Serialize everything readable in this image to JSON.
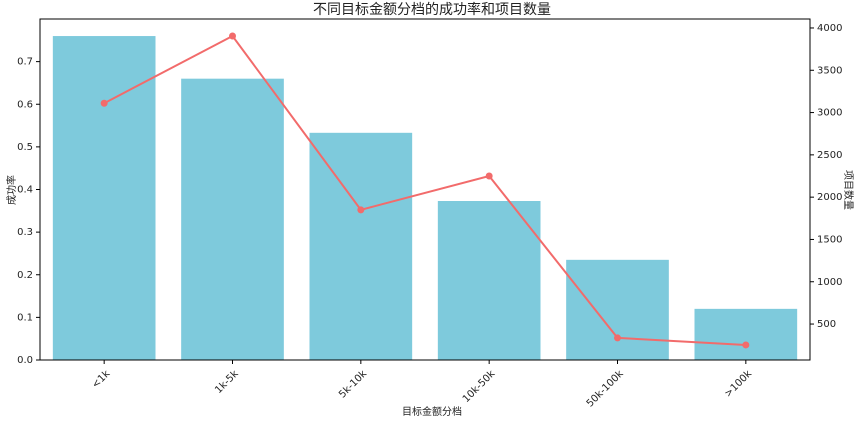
{
  "chart_data": {
    "type": "bar",
    "title": "不同目标金额分档的成功率和项目数量",
    "x_label": "目标金额分档",
    "y_label": "成功率",
    "y2_label": "项目数量",
    "categories": [
      "<1k",
      "1k-5k",
      "5k-10k",
      "10k-50k",
      "50k-100k",
      ">100k"
    ],
    "series": [
      {
        "type": "bar",
        "color": "#7ecadc",
        "values": [
          0.76,
          0.66,
          0.533,
          0.373,
          0.235,
          0.12
        ]
      },
      {
        "type": "line",
        "axis": "y2",
        "color": "#f26b6b",
        "values": [
          3110,
          3905,
          1850,
          2250,
          336,
          253
        ]
      }
    ],
    "ylim": [
      0,
      0.8
    ],
    "yticks": [
      {
        "value": 0,
        "label": "0.0"
      },
      {
        "value": 0.1,
        "label": "0.1"
      },
      {
        "value": 0.2,
        "label": "0.2"
      },
      {
        "value": 0.3,
        "label": "0.3"
      },
      {
        "value": 0.4,
        "label": "0.4"
      },
      {
        "value": 0.5,
        "label": "0.5"
      },
      {
        "value": 0.6,
        "label": "0.6"
      },
      {
        "value": 0.7,
        "label": "0.7"
      }
    ],
    "y2lim": [
      75,
      4106
    ],
    "y2ticks": [
      500,
      1000,
      1500,
      2000,
      2500,
      3000,
      3500,
      4000
    ]
  }
}
